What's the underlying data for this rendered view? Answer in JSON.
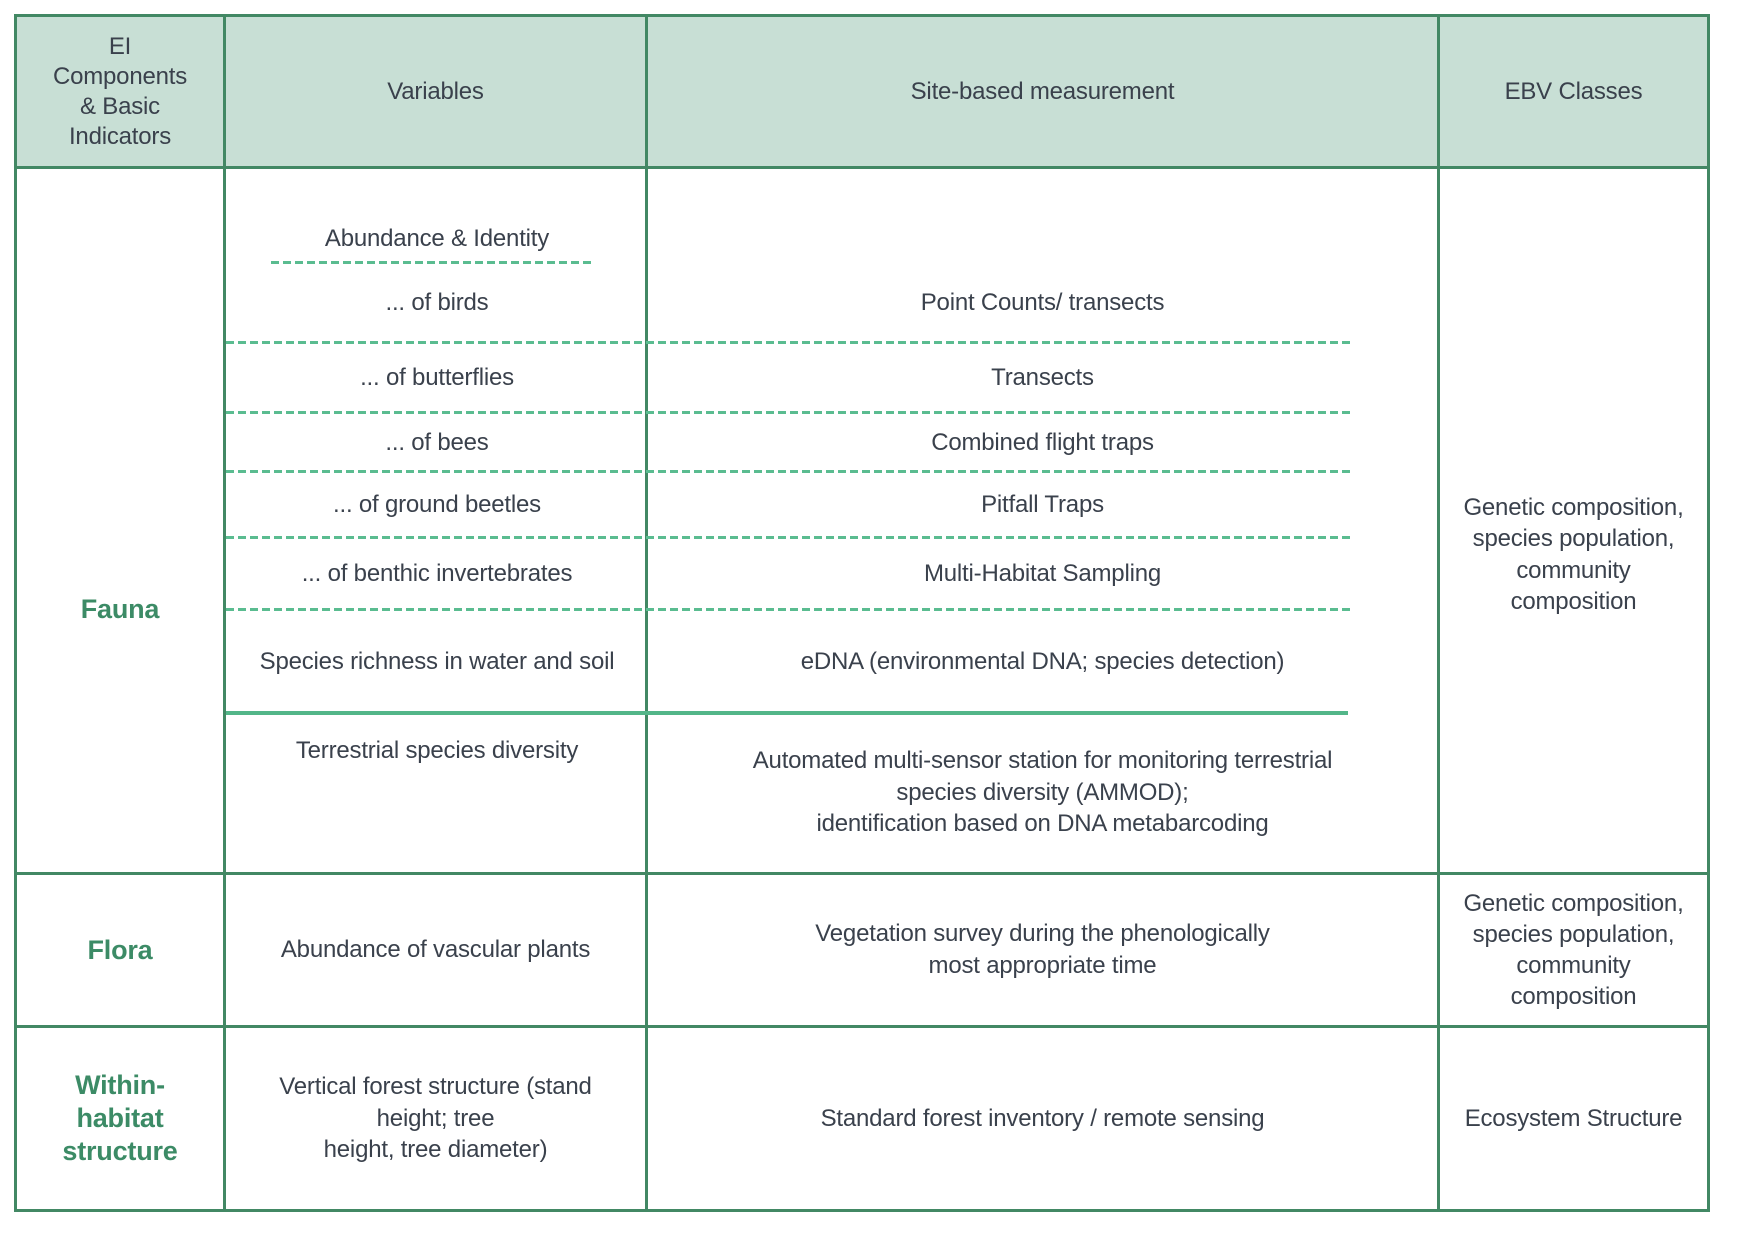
{
  "header": {
    "components": "EI\nComponents\n& Basic\nIndicators",
    "variables": "Variables",
    "measurement": "Site-based measurement",
    "ebv_classes": "EBV Classes"
  },
  "rows": {
    "fauna": {
      "label": "Fauna",
      "variables_header": "Abundance & Identity",
      "sub_rows": [
        {
          "variable": "... of birds",
          "measurement": "Point Counts/ transects"
        },
        {
          "variable": "... of butterflies",
          "measurement": "Transects"
        },
        {
          "variable": "... of bees",
          "measurement": "Combined flight traps"
        },
        {
          "variable": "... of ground beetles",
          "measurement": "Pitfall Traps"
        },
        {
          "variable": "... of benthic invertebrates",
          "measurement": "Multi-Habitat Sampling"
        },
        {
          "variable": "Species richness in water and soil",
          "measurement": "eDNA (environmental DNA; species detection)"
        },
        {
          "variable": "Terrestrial species diversity",
          "measurement": "Automated multi-sensor station for monitoring terrestrial\nspecies diversity (AMMOD);\nidentification based on DNA metabarcoding"
        }
      ],
      "ebv": "Genetic composition,\nspecies population,\ncommunity\ncomposition"
    },
    "flora": {
      "label": "Flora",
      "variable": "Abundance of vascular plants",
      "measurement": "Vegetation survey during the phenologically\nmost appropriate time",
      "ebv": "Genetic composition,\nspecies population,\ncommunity\ncomposition"
    },
    "within_habitat": {
      "label": "Within-\nhabitat\nstructure",
      "variable": "Vertical forest structure (stand\nheight; tree\nheight, tree diameter)",
      "measurement": "Standard forest inventory / remote sensing",
      "ebv": "Ecosystem Structure"
    }
  },
  "colors": {
    "border_green": "#428864",
    "dashed_separator_green": "#5abc90",
    "header_background": "#c8dfd5",
    "label_green": "#3c8b66",
    "text": "#3a414c"
  }
}
